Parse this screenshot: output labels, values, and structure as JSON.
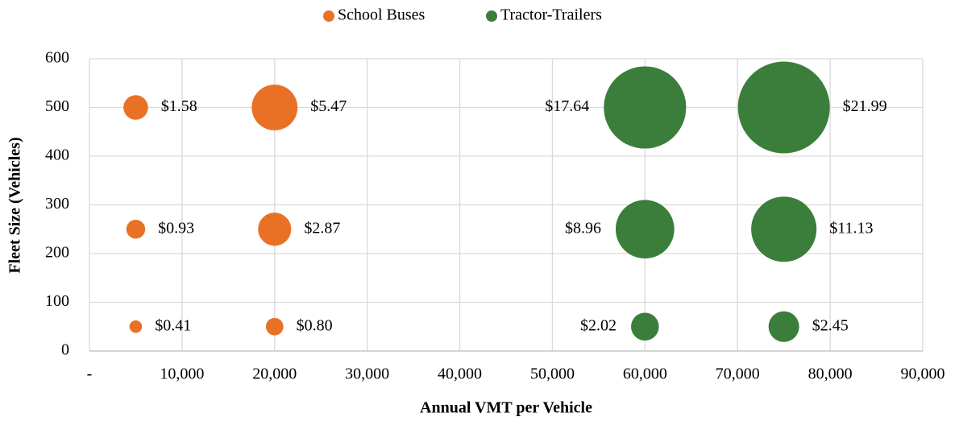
{
  "chart_data": {
    "type": "bubble",
    "xlabel": "Annual VMT per Vehicle",
    "ylabel": "Fleet Size (Vehicles)",
    "xlim": [
      0,
      90000
    ],
    "xticks": [
      {
        "value": 0,
        "label": "-"
      },
      {
        "value": 10000,
        "label": "10,000"
      },
      {
        "value": 20000,
        "label": "20,000"
      },
      {
        "value": 30000,
        "label": "30,000"
      },
      {
        "value": 40000,
        "label": "40,000"
      },
      {
        "value": 50000,
        "label": "50,000"
      },
      {
        "value": 60000,
        "label": "60,000"
      },
      {
        "value": 70000,
        "label": "70,000"
      },
      {
        "value": 80000,
        "label": "80,000"
      },
      {
        "value": 90000,
        "label": "90,000"
      }
    ],
    "ylim": [
      0,
      600
    ],
    "yticks": [
      0,
      100,
      200,
      300,
      400,
      500,
      600
    ],
    "grid": true,
    "legend": "top",
    "series": [
      {
        "name": "School Buses",
        "color": "#e97125",
        "x": [
          5000,
          20000,
          5000,
          20000,
          5000,
          20000
        ],
        "values": [
          500,
          500,
          250,
          250,
          50,
          50
        ],
        "sizes": [
          1.58,
          5.47,
          0.93,
          2.87,
          0.41,
          0.8
        ],
        "value_labels": [
          "$1.58",
          "$5.47",
          "$0.93",
          "$2.87",
          "$0.41",
          "$0.80"
        ]
      },
      {
        "name": "Tractor-Trailers",
        "color": "#3b7e3b",
        "x": [
          60000,
          75000,
          60000,
          75000,
          60000,
          75000
        ],
        "values": [
          500,
          500,
          250,
          250,
          50,
          50
        ],
        "sizes": [
          17.64,
          21.99,
          8.96,
          11.13,
          2.02,
          2.45
        ],
        "value_labels": [
          "$17.64",
          "$21.99",
          "$8.96",
          "$11.13",
          "$2.02",
          "$2.45"
        ]
      }
    ]
  }
}
